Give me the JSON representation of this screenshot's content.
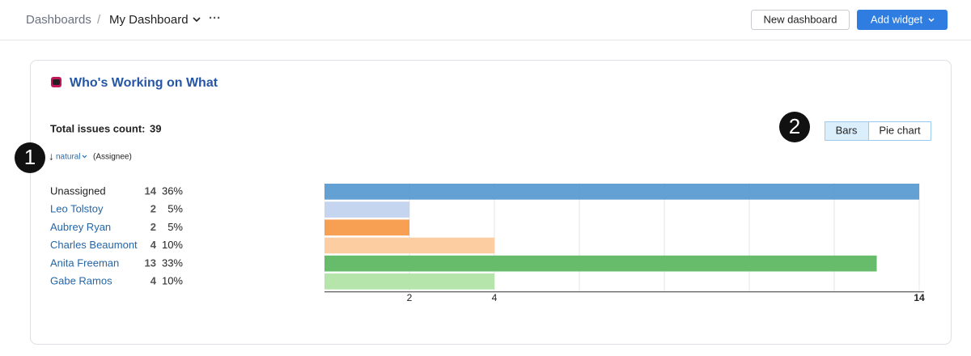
{
  "header": {
    "root": "Dashboards",
    "separator": "/",
    "current": "My Dashboard",
    "more": "···",
    "new_button": "New dashboard",
    "add_button": "Add widget"
  },
  "widget": {
    "title": "Who's Working on What",
    "total_label": "Total issues count:",
    "total": 39,
    "sort_arrow": "↓",
    "sort_order": "natural",
    "sort_field": "(Assignee)",
    "toggle": [
      "Bars",
      "Pie chart"
    ],
    "callouts": [
      "1",
      "2"
    ]
  },
  "chart_data": {
    "type": "bar",
    "orientation": "horizontal",
    "categories": [
      "Unassigned",
      "Leo Tolstoy",
      "Aubrey Ryan",
      "Charles Beaumont",
      "Anita Freeman",
      "Gabe Ramos"
    ],
    "values": [
      14,
      2,
      2,
      4,
      13,
      4
    ],
    "percent_labels": [
      "36%",
      "5%",
      "5%",
      "10%",
      "33%",
      "10%"
    ],
    "colors": [
      "#5b9bd1",
      "#c2d3ee",
      "#f79b4a",
      "#fdca9d",
      "#5eb862",
      "#b2e4a6"
    ],
    "xlim": [
      0,
      14
    ],
    "xticks": [
      2,
      4,
      14
    ],
    "gridlines": [
      2,
      4,
      6,
      8,
      10,
      12,
      14
    ],
    "grid": true
  }
}
